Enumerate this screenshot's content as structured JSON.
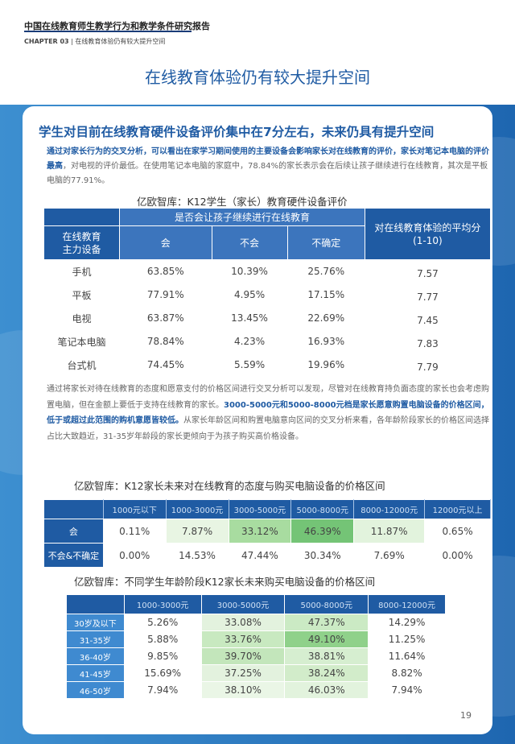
{
  "header": {
    "report_title": "中国在线教育师生教学行为和教学条件研究报告",
    "chapter": "CHAPTER 03",
    "chapter_sep": "|",
    "chapter_title": "在线教育体验仍有较大提升空间"
  },
  "page_title": "在线教育体验仍有较大提升空间",
  "subtitle": "学生对目前在线教育硬件设备评价集中在7分左右，未来仍具有提升空间",
  "para1": {
    "highlight": "通过对家长行为的交叉分析，可以看出在家学习期间使用的主要设备会影响家长对在线教育的评价，家长对笔记本电脑的评价最高",
    "rest": "，对电视的评价最低。在使用笔记本电脑的家庭中，78.84%的家长表示会在后续让孩子继续进行在线教育，其次是平板电脑的77.91%。"
  },
  "table1": {
    "caption": "亿欧智库：K12学生（家长）教育硬件设备评价",
    "group_header": "是否会让孩子继续进行在线教育",
    "row_header": "在线教育\n主力设备",
    "score_header": "对在线教育体验的平均分\n(1-10)",
    "columns": [
      "会",
      "不会",
      "不确定"
    ],
    "rows": [
      {
        "device": "手机",
        "values": [
          "63.85%",
          "10.39%",
          "25.76%"
        ],
        "score": "7.57"
      },
      {
        "device": "平板",
        "values": [
          "77.91%",
          "4.95%",
          "17.15%"
        ],
        "score": "7.77"
      },
      {
        "device": "电视",
        "values": [
          "63.87%",
          "13.45%",
          "22.69%"
        ],
        "score": "7.45"
      },
      {
        "device": "笔记本电脑",
        "values": [
          "78.84%",
          "4.23%",
          "16.93%"
        ],
        "score": "7.83"
      },
      {
        "device": "台式机",
        "values": [
          "74.45%",
          "5.59%",
          "19.96%"
        ],
        "score": "7.79"
      }
    ]
  },
  "para2": {
    "part1": "通过将家长对待在线教育的态度和愿意支付的价格区间进行交叉分析可以发现，尽管对在线教育持负面态度的家长也会考虑购置电脑，但在金额上要低于支持在线教育的家长。",
    "highlight": "3000-5000元和5000-8000元档是家长愿意购置电脑设备的价格区间，低于或超过此范围的购机意愿皆较低。",
    "part2": "从家长年龄区间和购置电脑意向区间的交叉分析来看，各年龄阶段家长的价格区间选择占比大致趋近，31-35岁年龄段的家长更倾向于为孩子购买高价格设备。"
  },
  "table2": {
    "caption": "亿欧智库：K12家长未来对在线教育的态度与购买电脑设备的价格区间",
    "columns": [
      "1000元以下",
      "1000-3000元",
      "3000-5000元",
      "5000-8000元",
      "8000-12000元",
      "12000元以上"
    ],
    "rows": [
      {
        "label": "会",
        "values": [
          "0.11%",
          "7.87%",
          "33.12%",
          "46.39%",
          "11.87%",
          "0.65%"
        ]
      },
      {
        "label": "不会&不确定",
        "values": [
          "0.00%",
          "14.53%",
          "47.44%",
          "30.34%",
          "7.69%",
          "0.00%"
        ]
      }
    ],
    "cell_colors": [
      [
        "#ffffff",
        "#e8f5e3",
        "#a8dca0",
        "#74c476",
        "#e2f3dd",
        "#ffffff"
      ],
      [
        "#ffffff",
        "#ffffff",
        "#ffffff",
        "#ffffff",
        "#ffffff",
        "#ffffff"
      ]
    ]
  },
  "table3": {
    "caption": "亿欧智库：不同学生年龄阶段K12家长未来购买电脑设备的价格区间",
    "columns": [
      "1000-3000元",
      "3000-5000元",
      "5000-8000元",
      "8000-12000元"
    ],
    "rows": [
      {
        "label": "30岁及以下",
        "values": [
          "5.26%",
          "33.08%",
          "47.37%",
          "14.29%"
        ]
      },
      {
        "label": "31-35岁",
        "values": [
          "5.88%",
          "33.76%",
          "49.10%",
          "11.25%"
        ]
      },
      {
        "label": "36-40岁",
        "values": [
          "9.85%",
          "39.70%",
          "38.81%",
          "11.64%"
        ]
      },
      {
        "label": "41-45岁",
        "values": [
          "15.69%",
          "37.25%",
          "38.24%",
          "8.82%"
        ]
      },
      {
        "label": "46-50岁",
        "values": [
          "7.94%",
          "38.10%",
          "46.03%",
          "7.94%"
        ]
      }
    ],
    "cell_colors": [
      [
        "#ffffff",
        "#e3f2de",
        "#cbeac4",
        "#ffffff"
      ],
      [
        "#ffffff",
        "#c8e9c0",
        "#8fd18a",
        "#ffffff"
      ],
      [
        "#ffffff",
        "#c3e6bb",
        "#d6eed0",
        "#ffffff"
      ],
      [
        "#ffffff",
        "#e3f2de",
        "#d2ecca",
        "#ffffff"
      ],
      [
        "#ffffff",
        "#eaf6e6",
        "#e2f3dd",
        "#ffffff"
      ]
    ]
  },
  "page_number": "19",
  "colors": {
    "primary": "#1f5ba3",
    "band": "#2f7bc4"
  }
}
